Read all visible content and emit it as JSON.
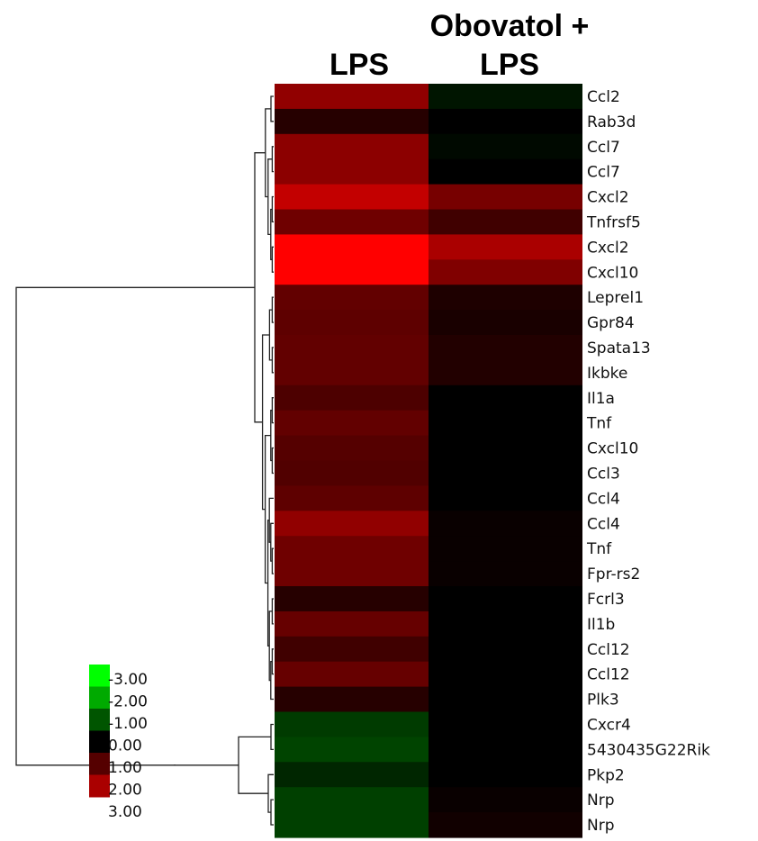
{
  "chart_data": {
    "type": "heatmap",
    "columns": [
      "LPS",
      "Obovatol + LPS"
    ],
    "column_header_lines": [
      [
        "LPS"
      ],
      [
        "Obovatol +",
        "LPS"
      ]
    ],
    "rows": [
      "Ccl2",
      "Rab3d",
      "Ccl7",
      "Ccl7",
      "Cxcl2",
      "Tnfrsf5",
      "Cxcl2",
      "Cxcl10",
      "Leprel1",
      "Gpr84",
      "Spata13",
      "Ikbke",
      "Il1a",
      "Tnf",
      "Cxcl10",
      "Ccl3",
      "Ccl4",
      "Ccl4",
      "Tnf",
      "Fpr-rs2",
      "Fcrl3",
      "Il1b",
      "Ccl12",
      "Ccl12",
      "Plk3",
      "Cxcr4",
      "5430435G22Rik",
      "Pkp2",
      "Nrp",
      "Nrp"
    ],
    "values": [
      [
        1.7,
        -0.25
      ],
      [
        0.45,
        0.0
      ],
      [
        1.65,
        -0.1
      ],
      [
        1.65,
        0.0
      ],
      [
        2.3,
        1.4
      ],
      [
        1.3,
        0.75
      ],
      [
        3.0,
        2.0
      ],
      [
        3.0,
        1.5
      ],
      [
        1.15,
        0.35
      ],
      [
        1.1,
        0.3
      ],
      [
        1.15,
        0.4
      ],
      [
        1.15,
        0.4
      ],
      [
        0.9,
        0.0
      ],
      [
        1.15,
        0.0
      ],
      [
        1.0,
        0.0
      ],
      [
        0.95,
        0.0
      ],
      [
        1.1,
        0.0
      ],
      [
        1.7,
        0.1
      ],
      [
        1.3,
        0.1
      ],
      [
        1.3,
        0.1
      ],
      [
        0.45,
        0.0
      ],
      [
        1.2,
        0.0
      ],
      [
        0.75,
        0.0
      ],
      [
        1.2,
        0.0
      ],
      [
        0.45,
        0.0
      ],
      [
        -0.7,
        0.0
      ],
      [
        -0.8,
        0.0
      ],
      [
        -0.45,
        0.0
      ],
      [
        -0.75,
        0.1
      ],
      [
        -0.75,
        0.2
      ]
    ],
    "scale": {
      "labels": [
        "-3.00",
        "-2.00",
        "-1.00",
        "0.00",
        "1.00",
        "2.00",
        "3.00"
      ],
      "range": [
        -3,
        3
      ],
      "low_color": "#00ff00",
      "mid_color": "#000000",
      "high_color": "#ff0000"
    },
    "dendrogram": {
      "tree": [
        [
          [
            [
              0,
              1
            ],
            [
              [
                2,
                3
              ],
              [
                [
                  4,
                  5
                ],
                [
                  6,
                  7
                ]
              ]
            ]
          ],
          [
            [
              [
                8,
                9
              ],
              [
                10,
                11
              ]
            ],
            [
              [
                [
                  12,
                  13
                ],
                [
                  14,
                  15
                ]
              ],
              [
                [
                  16,
                  [
                    17,
                    [
                      18,
                      19
                    ]
                  ]
                ],
                [
                  [
                    20,
                    21
                  ],
                  [
                    [
                      22,
                      23
                    ],
                    24
                  ]
                ]
              ]
            ]
          ]
        ],
        [
          [
            25,
            26
          ],
          [
            27,
            [
              28,
              29
            ]
          ]
        ]
      ]
    }
  }
}
